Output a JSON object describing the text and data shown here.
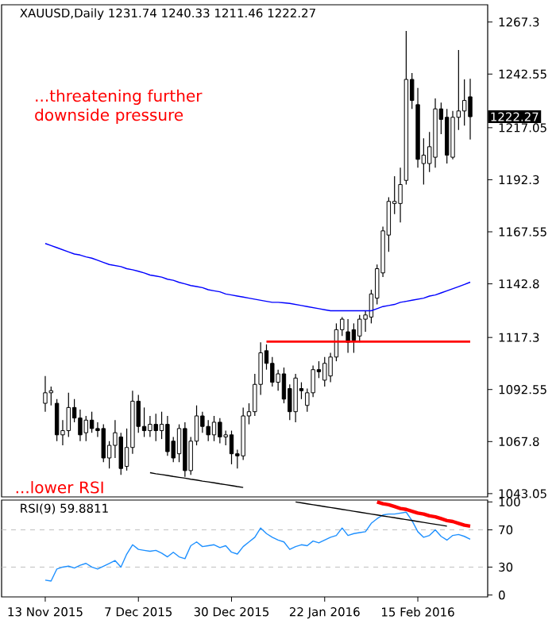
{
  "chart_data": [
    {
      "type": "candlestick",
      "title": "XAUUSD,Daily 1231.74 1240.33 1211.46 1222.27",
      "categories": [
        null,
        null,
        null,
        null,
        null,
        null,
        null,
        null,
        null,
        null,
        null,
        null,
        null,
        null,
        null,
        null,
        null,
        null,
        null,
        null,
        null,
        null,
        null,
        null,
        null,
        null,
        null,
        null,
        null,
        null,
        null,
        null,
        null,
        null,
        null,
        null,
        null,
        null,
        null,
        null,
        null,
        null,
        null,
        null,
        null,
        null,
        null,
        null,
        null,
        null,
        null,
        null,
        null,
        null,
        null,
        null,
        null,
        null,
        null,
        null,
        null,
        null,
        null,
        null,
        null,
        null,
        null,
        null,
        null,
        null,
        null,
        null,
        null,
        null
      ],
      "ohlc": [
        [
          1086,
          1099,
          1082,
          1091
        ],
        [
          1091,
          1094,
          1085,
          1092
        ],
        [
          1086,
          1088,
          1068,
          1071
        ],
        [
          1071,
          1078,
          1066,
          1073
        ],
        [
          1073,
          1091,
          1070,
          1084
        ],
        [
          1084,
          1088,
          1077,
          1079
        ],
        [
          1079,
          1083,
          1068,
          1071
        ],
        [
          1072,
          1080,
          1068,
          1078
        ],
        [
          1078,
          1082,
          1072,
          1074
        ],
        [
          1074,
          1077,
          1070,
          1073
        ],
        [
          1074,
          1076,
          1058,
          1060
        ],
        [
          1060,
          1068,
          1055,
          1066
        ],
        [
          1066,
          1078,
          1060,
          1072
        ],
        [
          1070,
          1072,
          1052,
          1055
        ],
        [
          1056,
          1074,
          1054,
          1065
        ],
        [
          1065,
          1092,
          1062,
          1087
        ],
        [
          1087,
          1090,
          1072,
          1075
        ],
        [
          1075,
          1084,
          1070,
          1073
        ],
        [
          1073,
          1080,
          1070,
          1076
        ],
        [
          1076,
          1081,
          1068,
          1073
        ],
        [
          1073,
          1082,
          1069,
          1076
        ],
        [
          1076,
          1080,
          1061,
          1063
        ],
        [
          1068,
          1070,
          1058,
          1060
        ],
        [
          1062,
          1076,
          1058,
          1074
        ],
        [
          1074,
          1077,
          1051,
          1054
        ],
        [
          1054,
          1070,
          1052,
          1068
        ],
        [
          1068,
          1085,
          1066,
          1080
        ],
        [
          1080,
          1082,
          1072,
          1075
        ],
        [
          1075,
          1078,
          1068,
          1071
        ],
        [
          1071,
          1080,
          1068,
          1077
        ],
        [
          1077,
          1079,
          1067,
          1070
        ],
        [
          1070,
          1073,
          1066,
          1071
        ],
        [
          1071,
          1073,
          1057,
          1062
        ],
        [
          1062,
          1064,
          1055,
          1061
        ],
        [
          1061,
          1084,
          1059,
          1080
        ],
        [
          1080,
          1086,
          1076,
          1082
        ],
        [
          1082,
          1100,
          1080,
          1095
        ],
        [
          1095,
          1115,
          1090,
          1110
        ],
        [
          1111,
          1114,
          1102,
          1105
        ],
        [
          1105,
          1108,
          1094,
          1096
        ],
        [
          1096,
          1102,
          1092,
          1100
        ],
        [
          1100,
          1103,
          1086,
          1088
        ],
        [
          1093,
          1095,
          1078,
          1082
        ],
        [
          1082,
          1100,
          1077,
          1098
        ],
        [
          1093,
          1096,
          1088,
          1092
        ],
        [
          1085,
          1093,
          1082,
          1091
        ],
        [
          1091,
          1104,
          1089,
          1102
        ],
        [
          1102,
          1106,
          1098,
          1101
        ],
        [
          1097,
          1108,
          1094,
          1105
        ],
        [
          1099,
          1110,
          1096,
          1108
        ],
        [
          1108,
          1124,
          1106,
          1121
        ],
        [
          1121,
          1127,
          1118,
          1126
        ],
        [
          1120,
          1126,
          1110,
          1115
        ],
        [
          1121,
          1124,
          1110,
          1116
        ],
        [
          1118,
          1128,
          1115,
          1126
        ],
        [
          1126,
          1130,
          1120,
          1128
        ],
        [
          1127,
          1140,
          1124,
          1138
        ],
        [
          1136,
          1152,
          1133,
          1150
        ],
        [
          1148,
          1170,
          1146,
          1168
        ],
        [
          1166,
          1184,
          1158,
          1182
        ],
        [
          1181,
          1194,
          1176,
          1182
        ],
        [
          1181,
          1198,
          1172,
          1190
        ],
        [
          1192,
          1263,
          1190,
          1240
        ],
        [
          1240,
          1243,
          1226,
          1230
        ],
        [
          1228,
          1236,
          1198,
          1202
        ],
        [
          1200,
          1212,
          1190,
          1204
        ],
        [
          1200,
          1215,
          1196,
          1208
        ],
        [
          1203,
          1231,
          1198,
          1226
        ],
        [
          1226,
          1229,
          1214,
          1221
        ],
        [
          1222,
          1226,
          1200,
          1204
        ],
        [
          1203,
          1225,
          1202,
          1222
        ],
        [
          1222,
          1254,
          1216,
          1225
        ],
        [
          1225,
          1240,
          1218,
          1230
        ],
        [
          1231.74,
          1240.33,
          1211.46,
          1222.27
        ]
      ],
      "series": [
        {
          "type": "line",
          "color": "#0000ff",
          "values": [
            1162,
            1161,
            1160,
            1159,
            1158,
            1157,
            1156.5,
            1155.6,
            1155,
            1154,
            1153,
            1152,
            1151.5,
            1151,
            1150,
            1149.5,
            1148.8,
            1148,
            1147,
            1146.5,
            1146,
            1145,
            1144.5,
            1143.5,
            1142.8,
            1142,
            1141.5,
            1141,
            1140,
            1139.5,
            1139,
            1138,
            1137.5,
            1137,
            1136.5,
            1136,
            1135.5,
            1135,
            1134.5,
            1134,
            1134,
            1133.8,
            1133.5,
            1133,
            1132.5,
            1132,
            1131.5,
            1131,
            1130.5,
            1130,
            1130,
            1130,
            1130,
            1130,
            1130,
            1130,
            1130,
            1131,
            1132,
            1132.5,
            1133,
            1134,
            1134.5,
            1135,
            1135.5,
            1136,
            1137,
            1137.5,
            1138.5,
            1139.5,
            1140.5,
            1141.5,
            1142.5,
            1143.6
          ]
        },
        {
          "type": "line",
          "color": "#ff0000",
          "values": [
            null,
            null,
            null,
            null,
            null,
            null,
            null,
            null,
            null,
            null,
            null,
            null,
            null,
            null,
            null,
            null,
            null,
            null,
            null,
            null,
            null,
            null,
            null,
            null,
            null,
            null,
            null,
            null,
            null,
            null,
            null,
            null,
            null,
            null,
            null,
            null,
            null,
            null,
            1115.3,
            1115.3,
            1115.3,
            1115.3,
            1115.3,
            1115.3,
            1115.3,
            1115.3,
            1115.3,
            1115.3,
            1115.3,
            1115.3,
            1115.3,
            1115.3,
            1115.3,
            1115.3,
            1115.3,
            1115.3,
            1115.3,
            1115.3,
            1115.3,
            1115.3,
            1115.3,
            1115.3,
            1115.3,
            1115.3,
            1115.3,
            1115.3,
            1115.3,
            1115.3,
            1115.3,
            1115.3,
            1115.3,
            1115.3,
            1115.3,
            1115.3
          ]
        },
        {
          "type": "line",
          "color": "#000000",
          "values": [
            null,
            null,
            null,
            null,
            null,
            null,
            null,
            null,
            null,
            null,
            null,
            null,
            null,
            null,
            null,
            null,
            null,
            null,
            1053,
            1052.5,
            1052.1,
            1051.7,
            1051.2,
            1050.8,
            1050.4,
            1049.9,
            1049.5,
            1049,
            1048.6,
            1048.2,
            1047.7,
            1047.3,
            1046.9,
            1046.4,
            1046,
            null,
            null,
            null,
            null,
            null,
            null,
            null,
            null,
            null,
            null,
            null,
            null,
            null,
            null,
            null,
            null,
            null,
            null,
            null,
            null,
            null,
            null,
            null,
            null,
            null,
            null,
            null,
            null,
            null,
            null,
            null,
            null,
            null,
            null,
            null,
            null,
            null,
            null,
            null
          ]
        }
      ],
      "ylim": [
        1041.5,
        1275.5
      ],
      "yticks": [
        1043.05,
        1067.8,
        1092.55,
        1117.3,
        1142.8,
        1167.55,
        1192.3,
        1217.05,
        1242.55,
        1267.3
      ],
      "tick_labels": "y",
      "annotations": [
        "...threatening further downside pressure",
        "...lower RSI",
        "1222.27"
      ]
    },
    {
      "type": "line",
      "title": "RSI(9) 59.8811",
      "categories": [
        "13 Nov 2015",
        null,
        null,
        null,
        null,
        null,
        null,
        null,
        null,
        null,
        null,
        null,
        null,
        null,
        null,
        null,
        "7 Dec 2015",
        null,
        null,
        null,
        null,
        null,
        null,
        null,
        null,
        null,
        null,
        null,
        null,
        null,
        null,
        null,
        "30 Dec 2015",
        null,
        null,
        null,
        null,
        null,
        null,
        null,
        null,
        null,
        null,
        null,
        null,
        null,
        null,
        null,
        "22 Jan 2016",
        null,
        null,
        null,
        null,
        null,
        null,
        null,
        null,
        null,
        null,
        null,
        null,
        null,
        null,
        null,
        "15 Feb 2016",
        null,
        null,
        null,
        null,
        null,
        null,
        null,
        null,
        null
      ],
      "series": [
        {
          "color": "#1e90ff",
          "values": [
            16,
            15,
            28,
            30,
            31,
            29,
            32,
            34,
            30,
            28,
            31,
            34,
            37,
            30,
            44,
            54,
            49,
            48,
            47,
            48,
            45,
            41,
            46,
            41,
            39,
            53,
            57,
            52,
            53,
            54,
            51,
            53,
            46,
            44,
            52,
            57,
            62,
            72,
            66,
            62,
            59,
            57,
            49,
            52,
            54,
            53,
            58,
            56,
            59,
            62,
            64,
            72,
            64,
            66,
            67,
            68,
            77,
            82,
            86,
            87,
            87,
            88,
            89,
            80,
            68,
            62,
            64,
            70,
            63,
            59,
            64,
            65,
            63,
            60
          ]
        },
        {
          "color": "#000000",
          "values": [
            null,
            null,
            null,
            null,
            null,
            null,
            null,
            null,
            null,
            null,
            null,
            null,
            null,
            null,
            null,
            null,
            null,
            null,
            null,
            null,
            null,
            null,
            null,
            null,
            null,
            null,
            null,
            null,
            null,
            null,
            null,
            null,
            null,
            null,
            null,
            null,
            null,
            null,
            null,
            null,
            null,
            null,
            null,
            100,
            99,
            98,
            97,
            96,
            95,
            94,
            93,
            92,
            91,
            90,
            89,
            88,
            87,
            86,
            85,
            84,
            83,
            82,
            81,
            80,
            79,
            78,
            77,
            76,
            75,
            74,
            null,
            null,
            null,
            null
          ]
        },
        {
          "color": "#ff0000",
          "values": [
            null,
            null,
            null,
            null,
            null,
            null,
            null,
            null,
            null,
            null,
            null,
            null,
            null,
            null,
            null,
            null,
            null,
            null,
            null,
            null,
            null,
            null,
            null,
            null,
            null,
            null,
            null,
            null,
            null,
            null,
            null,
            null,
            null,
            null,
            null,
            null,
            null,
            null,
            null,
            null,
            null,
            null,
            null,
            null,
            null,
            null,
            null,
            null,
            null,
            null,
            null,
            null,
            null,
            null,
            null,
            null,
            null,
            100,
            98,
            97,
            95,
            93,
            92,
            90,
            88,
            87,
            85,
            84,
            82,
            80,
            79,
            77,
            75,
            74
          ]
        }
      ],
      "ylim": [
        -2,
        102
      ],
      "yticks": [
        0,
        30,
        70,
        100
      ],
      "ref_lines": [
        {
          "axis": "y",
          "value": 70,
          "color": "#c0c0c0",
          "line_style": "dashed"
        },
        {
          "axis": "y",
          "value": 30,
          "color": "#c0c0c0",
          "line_style": "dashed"
        }
      ]
    }
  ]
}
